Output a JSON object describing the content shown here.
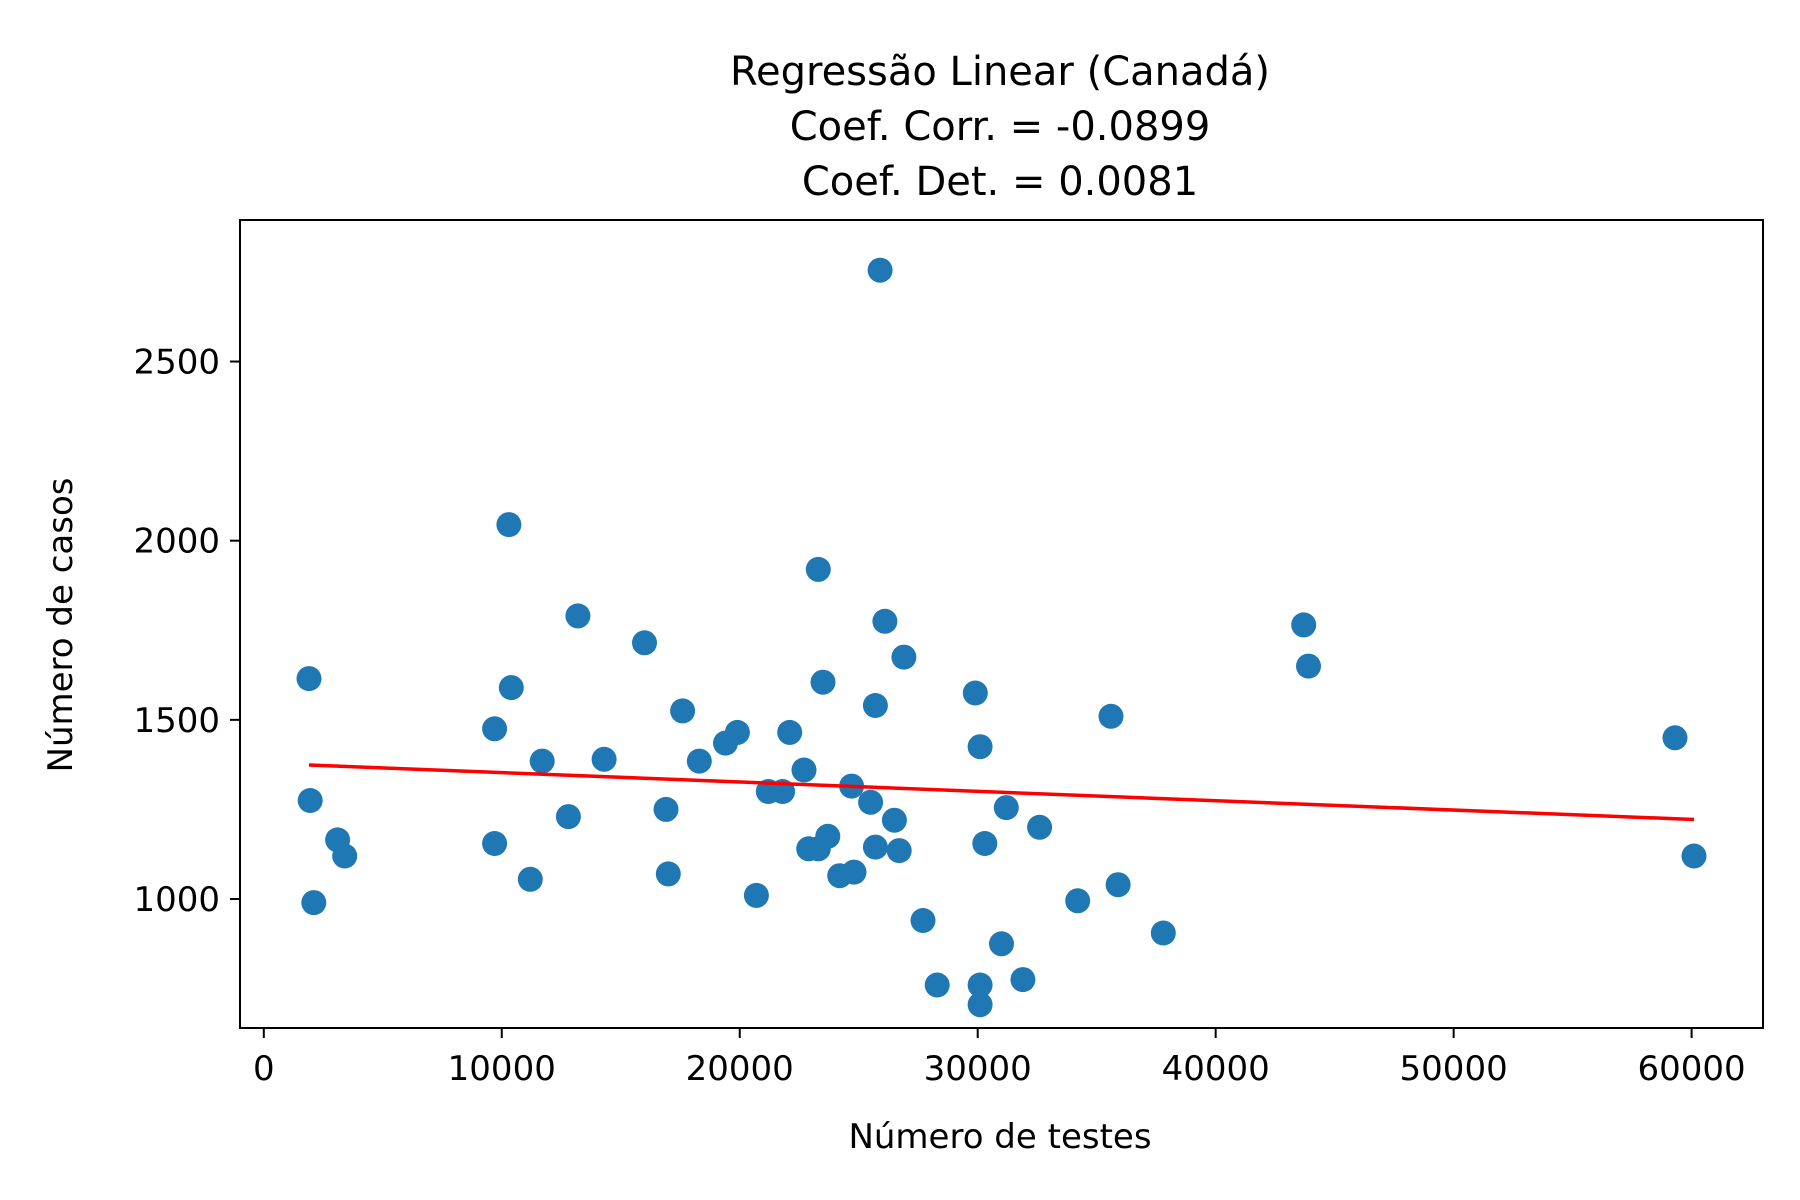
{
  "chart_data": {
    "type": "scatter",
    "title_lines": [
      "Regressão Linear (Canadá)",
      "Coef. Corr. = -0.0899",
      "Coef. Det. = 0.0081"
    ],
    "xlabel": "Número de testes",
    "ylabel": "Número de casos",
    "xlim": [
      -1000,
      63000
    ],
    "ylim": [
      640,
      2895
    ],
    "x_ticks": [
      0,
      10000,
      20000,
      30000,
      40000,
      50000,
      60000
    ],
    "y_ticks": [
      1000,
      1500,
      2000,
      2500
    ],
    "grid": false,
    "colors": {
      "points": "#1f77b4",
      "regression": "#ff0000",
      "axes": "#000000"
    },
    "series": [
      {
        "type": "scatter",
        "x": [
          1900,
          1950,
          2100,
          3100,
          3400,
          9700,
          9700,
          10300,
          10400,
          11200,
          11700,
          12800,
          13200,
          14300,
          16000,
          16900,
          17000,
          17600,
          18300,
          19400,
          19900,
          20700,
          21200,
          21800,
          22100,
          22700,
          22900,
          23300,
          23300,
          23500,
          23700,
          24200,
          24700,
          24800,
          25500,
          25700,
          25700,
          25900,
          26100,
          26500,
          26700,
          26900,
          27700,
          28300,
          29900,
          30100,
          30100,
          30100,
          30300,
          31000,
          31200,
          31900,
          32600,
          34200,
          35600,
          35900,
          37800,
          43700,
          43900,
          59300,
          60100
        ],
        "y": [
          1615,
          1275,
          990,
          1165,
          1120,
          1155,
          1475,
          2045,
          1590,
          1055,
          1385,
          1230,
          1790,
          1390,
          1715,
          1250,
          1070,
          1525,
          1385,
          1435,
          1465,
          1010,
          1300,
          1300,
          1465,
          1360,
          1140,
          1920,
          1140,
          1605,
          1175,
          1065,
          1315,
          1075,
          1270,
          1145,
          1540,
          2755,
          1775,
          1220,
          1135,
          1675,
          940,
          760,
          1575,
          1425,
          760,
          705,
          1155,
          875,
          1255,
          775,
          1200,
          995,
          1510,
          1040,
          905,
          1765,
          1650,
          1450,
          1120
        ]
      },
      {
        "type": "line",
        "x": [
          1900,
          60100
        ],
        "y": [
          1374,
          1222
        ]
      }
    ]
  }
}
